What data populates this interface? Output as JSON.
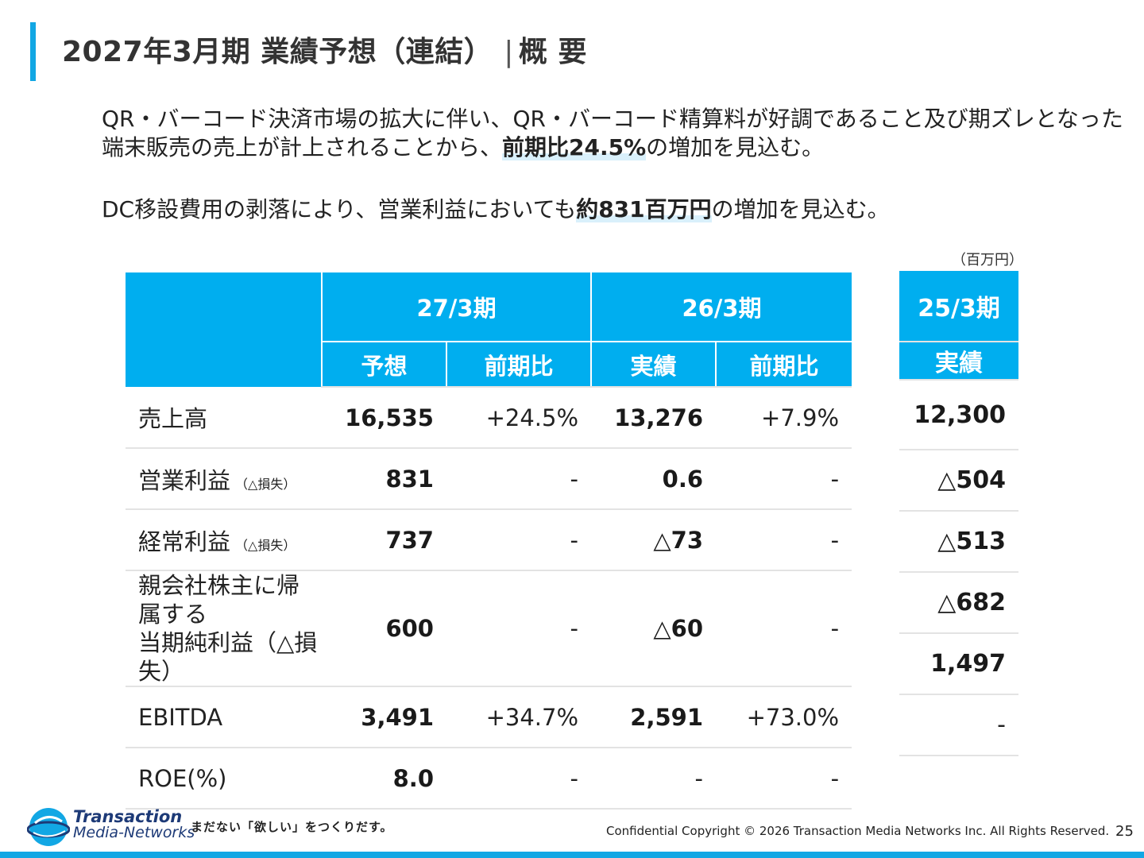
{
  "title": {
    "main": "2027年3月期 業績予想（連結）",
    "separator": "|",
    "section": "概 要"
  },
  "summary": {
    "p1_text_a": "QR・バーコード決済市場の拡大に伴い、QR・バーコード精算料が好調であること及び期ズレとなった端末販売の売上が計上されることから、",
    "p1_highlight": "前期比24.5%",
    "p1_text_b": "の増加を見込む。",
    "p2_text_a": "DC移設費用の剥落により、営業利益においても",
    "p2_highlight": "約831百万円",
    "p2_text_b": "の増加を見込む。"
  },
  "unit_label": "（百万円）",
  "table": {
    "period_27": "27/3期",
    "period_26": "26/3期",
    "col_forecast": "予想",
    "col_yoy": "前期比",
    "col_actual": "実績",
    "rows": [
      {
        "label": "売上高",
        "note": "",
        "label2": "",
        "f27": "16,535",
        "yoy27": "+24.5%",
        "a26": "13,276",
        "yoy26": "+7.9%"
      },
      {
        "label": "営業利益",
        "note": "（△損失）",
        "label2": "",
        "f27": "831",
        "yoy27": "-",
        "a26": "0.6",
        "yoy26": "-"
      },
      {
        "label": "経常利益",
        "note": "（△損失）",
        "label2": "",
        "f27": "737",
        "yoy27": "-",
        "a26": "△73",
        "yoy26": "-"
      },
      {
        "label": "親会社株主に帰属する",
        "note": "",
        "label2": "当期純利益（△損失）",
        "f27": "600",
        "yoy27": "-",
        "a26": "△60",
        "yoy26": "-"
      },
      {
        "label": "EBITDA",
        "note": "",
        "label2": "",
        "f27": "3,491",
        "yoy27": "+34.7%",
        "a26": "2,591",
        "yoy26": "+73.0%"
      },
      {
        "label": "ROE(%)",
        "note": "",
        "label2": "",
        "f27": "8.0",
        "yoy27": "-",
        "a26": "-",
        "yoy26": "-"
      }
    ]
  },
  "side_table": {
    "period": "25/3期",
    "col_actual": "実績",
    "values": [
      "12,300",
      "△504",
      "△513",
      "△682",
      "1,497",
      "-"
    ]
  },
  "footer": {
    "logo_line1": "Transaction",
    "logo_line2": "Media-Networks",
    "tagline": "まだない「欲しい」をつくりだす。",
    "copyright": "Confidential  Copyright © 2026 Transaction Media Networks Inc. All Rights Reserved.",
    "page_number": "25"
  },
  "colors": {
    "accent": "#00aeef",
    "brand_navy": "#1d3a77",
    "row_divider": "#e3e3e3"
  }
}
